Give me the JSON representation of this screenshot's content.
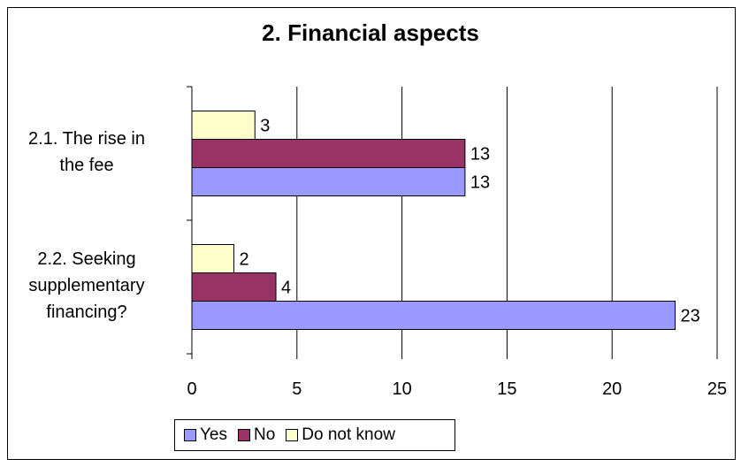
{
  "chart_data": {
    "type": "bar",
    "orientation": "horizontal",
    "title": "2. Financial aspects",
    "categories": [
      "2.1. The rise in the fee",
      "2.2. Seeking supplementary financing?"
    ],
    "category_lines": [
      [
        "2.1. The rise in",
        "the fee"
      ],
      [
        "2.2. Seeking",
        "supplementary",
        "financing?"
      ]
    ],
    "series": [
      {
        "name": "Yes",
        "values": [
          13,
          23
        ],
        "color": "#9999FF"
      },
      {
        "name": "No",
        "values": [
          13,
          4
        ],
        "color": "#993366"
      },
      {
        "name": "Do not know",
        "values": [
          3,
          2
        ],
        "color": "#FFFFCC"
      }
    ],
    "xlim": [
      0,
      25
    ],
    "xticks": [
      "0",
      "5",
      "10",
      "15",
      "20",
      "25"
    ],
    "grid": true,
    "legend_position": "bottom"
  }
}
